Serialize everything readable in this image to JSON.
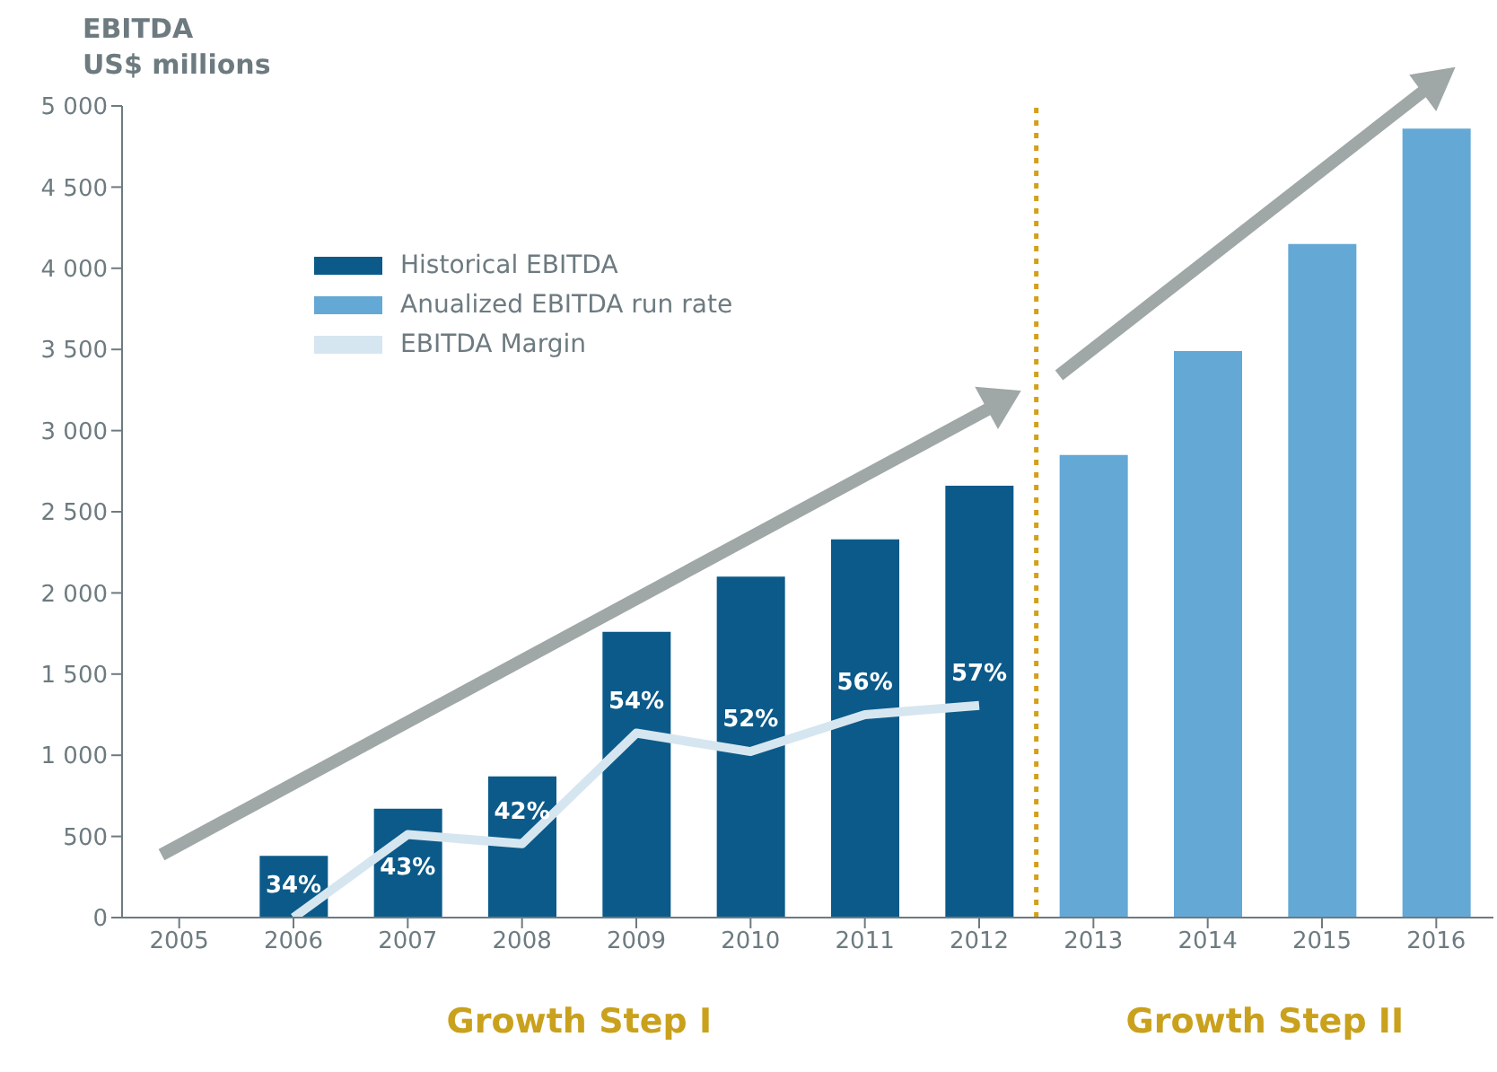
{
  "chart_data": {
    "type": "bar",
    "title": "EBITDA",
    "ylabel": "US$ millions",
    "x": [
      2006,
      2007,
      2008,
      2009,
      2010,
      2011,
      2012,
      2013,
      2014,
      2015,
      2016
    ],
    "xlim": [
      2004.5,
      2016.5
    ],
    "xticks": [
      2005,
      2006,
      2007,
      2008,
      2009,
      2010,
      2011,
      2012,
      2013,
      2014,
      2015,
      2016
    ],
    "ylim": [
      0,
      5000
    ],
    "yticks": [
      0,
      500,
      {
        "value": 1000,
        "label": "1 000"
      },
      {
        "value": 1500,
        "label": "1 500"
      },
      {
        "value": 2000,
        "label": "2 000"
      },
      {
        "value": 2500,
        "label": "2 500"
      },
      {
        "value": 3000,
        "label": "3 000"
      },
      {
        "value": 3500,
        "label": "3 500"
      },
      {
        "value": 4000,
        "label": "4 000"
      },
      {
        "value": 4500,
        "label": "4 500"
      },
      {
        "value": 5000,
        "label": "5 000"
      }
    ],
    "y2lim": [
      34,
      122
    ],
    "series": [
      {
        "name": "Historical EBITDA",
        "color": "#0b5a8a",
        "values": [
          380,
          670,
          870,
          1760,
          2100,
          2330,
          2660,
          null,
          null,
          null,
          null
        ]
      },
      {
        "name": "Anualized EBITDA run rate",
        "color": "#64a8d6",
        "values": [
          null,
          null,
          null,
          null,
          null,
          null,
          null,
          2850,
          3490,
          4150,
          4860
        ]
      },
      {
        "name": "EBITDA Margin",
        "type": "line",
        "axis": "y2",
        "color": "#d6e6f0",
        "values": [
          34,
          43,
          42,
          54,
          52,
          56,
          57,
          null,
          null,
          null,
          null
        ],
        "value_labels": [
          "34%",
          "43%",
          "42%",
          "54%",
          "52%",
          "56%",
          "57%",
          null,
          null,
          null,
          null
        ]
      }
    ],
    "ref_lines": [
      {
        "axis": "x",
        "value": 2012.5,
        "color": "#d4a017",
        "line_style": "dotted"
      }
    ],
    "annotations": [
      "Growth Step I",
      "Growth Step II"
    ],
    "legend": "top left",
    "grid": false,
    "marker": "none"
  }
}
